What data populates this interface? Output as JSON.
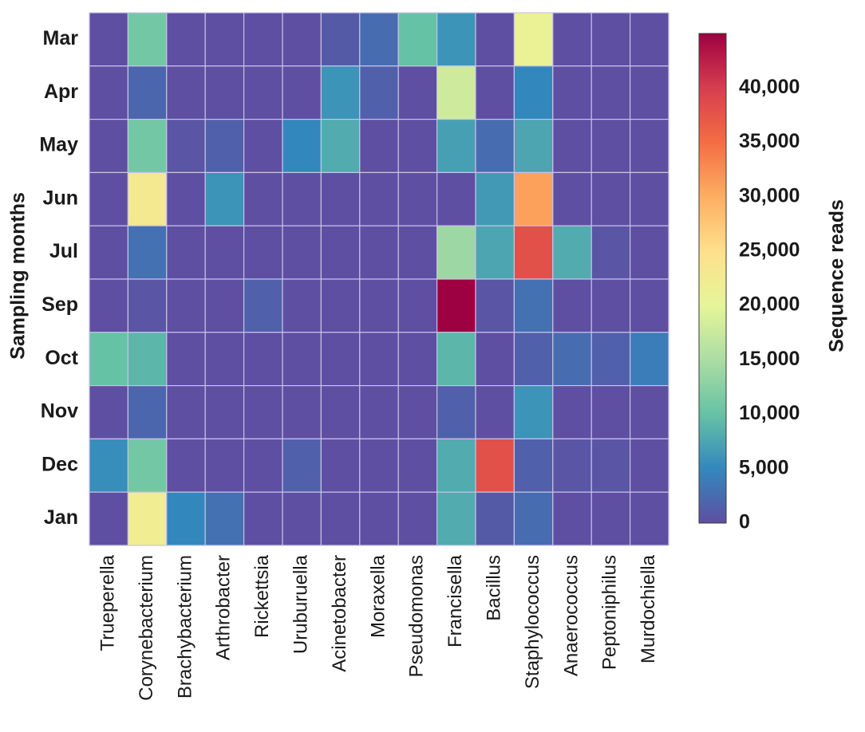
{
  "chart_data": {
    "type": "heatmap",
    "title": "",
    "ylabel": "Sampling months",
    "xlabel": "",
    "rows": [
      "Mar",
      "Apr",
      "May",
      "Jun",
      "Jul",
      "Sep",
      "Oct",
      "Nov",
      "Dec",
      "Jan"
    ],
    "columns": [
      "Trueperella",
      "Corynebacterium",
      "Brachybacterium",
      "Arthrobacter",
      "Rickettsia",
      "Uruburuella",
      "Acinetobacter",
      "Moraxella",
      "Pseudomonas",
      "Francisella",
      "Bacillus",
      "Staphylococcus",
      "Anaerococcus",
      "Peptoniphilus",
      "Murdochiella"
    ],
    "values": [
      [
        0,
        11000,
        0,
        0,
        0,
        0,
        1000,
        2500,
        10000,
        6000,
        0,
        21000,
        0,
        0,
        0
      ],
      [
        0,
        2000,
        0,
        0,
        0,
        0,
        6000,
        1500,
        0,
        18000,
        0,
        5000,
        0,
        0,
        0
      ],
      [
        0,
        11000,
        500,
        1500,
        0,
        5000,
        8000,
        0,
        0,
        7000,
        2500,
        7500,
        0,
        0,
        0
      ],
      [
        0,
        23000,
        0,
        6000,
        0,
        0,
        0,
        0,
        0,
        0,
        6500,
        31000,
        0,
        0,
        0
      ],
      [
        0,
        3000,
        0,
        0,
        0,
        0,
        0,
        0,
        0,
        14000,
        7500,
        38000,
        8000,
        500,
        0
      ],
      [
        0,
        500,
        0,
        0,
        1500,
        0,
        0,
        0,
        0,
        45000,
        500,
        3000,
        0,
        0,
        0
      ],
      [
        10000,
        9000,
        0,
        0,
        0,
        0,
        0,
        0,
        0,
        9000,
        0,
        1500,
        2500,
        1500,
        4000
      ],
      [
        0,
        2000,
        0,
        0,
        0,
        0,
        0,
        0,
        0,
        1500,
        0,
        6000,
        0,
        0,
        0
      ],
      [
        5500,
        11000,
        0,
        0,
        0,
        1500,
        0,
        0,
        0,
        8000,
        38000,
        1500,
        500,
        500,
        0
      ],
      [
        0,
        22000,
        5000,
        3000,
        0,
        0,
        0,
        0,
        0,
        8000,
        1000,
        2500,
        0,
        0,
        0
      ]
    ],
    "colorbar": {
      "label": "Sequence reads",
      "min": 0,
      "max": 45000,
      "ticks": [
        0,
        5000,
        10000,
        15000,
        20000,
        25000,
        30000,
        35000,
        40000
      ],
      "tick_labels": [
        "0",
        "5,000",
        "10,000",
        "15,000",
        "20,000",
        "25,000",
        "30,000",
        "35,000",
        "40,000"
      ]
    }
  },
  "colors": {
    "scale": [
      "#5e4fa2",
      "#3288bd",
      "#66c2a5",
      "#abdda4",
      "#e6f598",
      "#fee08b",
      "#fdae61",
      "#f46d43",
      "#d53e4f",
      "#9e0142"
    ],
    "grid_line": "#c7c3e6",
    "text": "#1a1a1a"
  }
}
